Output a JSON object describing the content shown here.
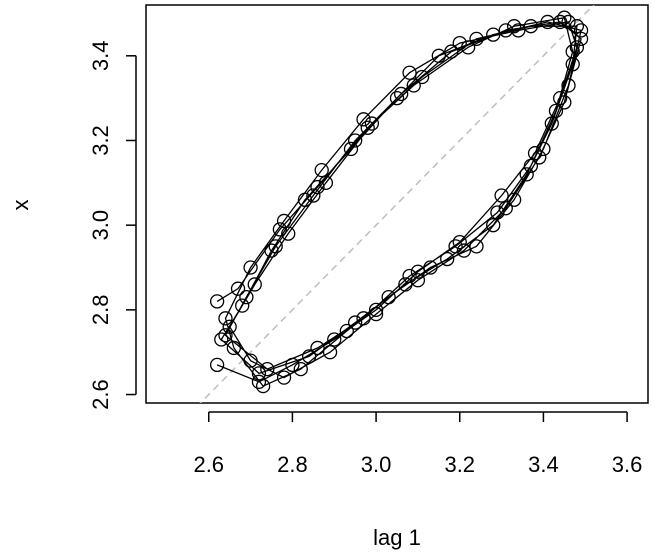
{
  "chart_data": {
    "type": "scatter",
    "title": "",
    "xlabel": "lag 1",
    "ylabel": "x",
    "xlim": [
      2.45,
      3.65
    ],
    "ylim": [
      2.58,
      3.52
    ],
    "x_ticks": [
      2.6,
      2.8,
      3.0,
      3.2,
      3.4,
      3.6
    ],
    "x_tick_labels": [
      "2.6",
      "2.8",
      "3.0",
      "3.2",
      "3.4",
      "3.6"
    ],
    "y_ticks": [
      2.6,
      2.8,
      3.0,
      3.2,
      3.4
    ],
    "y_tick_labels": [
      "2.6",
      "2.8",
      "3.0",
      "3.2",
      "3.4"
    ],
    "reference_line": {
      "slope": 1,
      "intercept": 0,
      "style": "dashed",
      "color": "#bebebe"
    },
    "marker": "open-circle",
    "connected": true,
    "grid": false,
    "legend": "none",
    "points": [
      [
        2.62,
        2.67
      ],
      [
        2.72,
        2.63
      ],
      [
        2.8,
        2.67
      ],
      [
        2.9,
        2.73
      ],
      [
        3.0,
        2.8
      ],
      [
        3.1,
        2.89
      ],
      [
        3.2,
        2.96
      ],
      [
        3.3,
        3.07
      ],
      [
        3.38,
        3.17
      ],
      [
        3.44,
        3.3
      ],
      [
        3.48,
        3.42
      ],
      [
        3.46,
        3.48
      ],
      [
        3.34,
        3.46
      ],
      [
        3.2,
        3.43
      ],
      [
        3.08,
        3.36
      ],
      [
        2.97,
        3.25
      ],
      [
        2.87,
        3.13
      ],
      [
        2.78,
        3.01
      ],
      [
        2.7,
        2.9
      ],
      [
        2.64,
        2.78
      ],
      [
        2.66,
        2.71
      ],
      [
        2.73,
        2.62
      ],
      [
        2.82,
        2.66
      ],
      [
        2.93,
        2.75
      ],
      [
        3.03,
        2.83
      ],
      [
        3.13,
        2.9
      ],
      [
        3.24,
        2.95
      ],
      [
        3.33,
        3.06
      ],
      [
        3.4,
        3.18
      ],
      [
        3.46,
        3.33
      ],
      [
        3.49,
        3.46
      ],
      [
        3.41,
        3.48
      ],
      [
        3.28,
        3.45
      ],
      [
        3.15,
        3.4
      ],
      [
        3.05,
        3.3
      ],
      [
        2.94,
        3.18
      ],
      [
        2.83,
        3.06
      ],
      [
        2.75,
        2.94
      ],
      [
        2.68,
        2.81
      ],
      [
        2.63,
        2.73
      ],
      [
        2.72,
        2.65
      ],
      [
        2.84,
        2.69
      ],
      [
        2.95,
        2.77
      ],
      [
        3.07,
        2.86
      ],
      [
        3.17,
        2.92
      ],
      [
        3.28,
        3.0
      ],
      [
        3.36,
        3.12
      ],
      [
        3.42,
        3.24
      ],
      [
        3.47,
        3.38
      ],
      [
        3.48,
        3.47
      ],
      [
        3.37,
        3.47
      ],
      [
        3.24,
        3.44
      ],
      [
        3.11,
        3.35
      ],
      [
        2.99,
        3.24
      ],
      [
        2.88,
        3.1
      ],
      [
        2.79,
        2.98
      ],
      [
        2.71,
        2.86
      ],
      [
        2.65,
        2.76
      ],
      [
        2.7,
        2.68
      ],
      [
        2.78,
        2.64
      ],
      [
        2.89,
        2.7
      ],
      [
        3.0,
        2.79
      ],
      [
        3.1,
        2.87
      ],
      [
        3.21,
        2.94
      ],
      [
        3.31,
        3.04
      ],
      [
        3.39,
        3.16
      ],
      [
        3.45,
        3.29
      ],
      [
        3.49,
        3.44
      ],
      [
        3.44,
        3.48
      ],
      [
        3.31,
        3.46
      ],
      [
        3.18,
        3.41
      ],
      [
        3.06,
        3.31
      ],
      [
        2.95,
        3.2
      ],
      [
        2.85,
        3.07
      ],
      [
        2.76,
        2.95
      ],
      [
        2.69,
        2.83
      ],
      [
        2.64,
        2.74
      ],
      [
        2.74,
        2.66
      ],
      [
        2.86,
        2.71
      ],
      [
        2.97,
        2.78
      ],
      [
        3.08,
        2.88
      ],
      [
        3.19,
        2.95
      ],
      [
        3.29,
        3.03
      ],
      [
        3.37,
        3.14
      ],
      [
        3.43,
        3.27
      ],
      [
        3.47,
        3.41
      ],
      [
        3.45,
        3.49
      ],
      [
        3.33,
        3.47
      ],
      [
        3.22,
        3.42
      ],
      [
        3.09,
        3.33
      ],
      [
        2.98,
        3.23
      ],
      [
        2.86,
        3.09
      ],
      [
        2.77,
        2.99
      ],
      [
        2.67,
        2.85
      ],
      [
        2.62,
        2.82
      ]
    ]
  }
}
